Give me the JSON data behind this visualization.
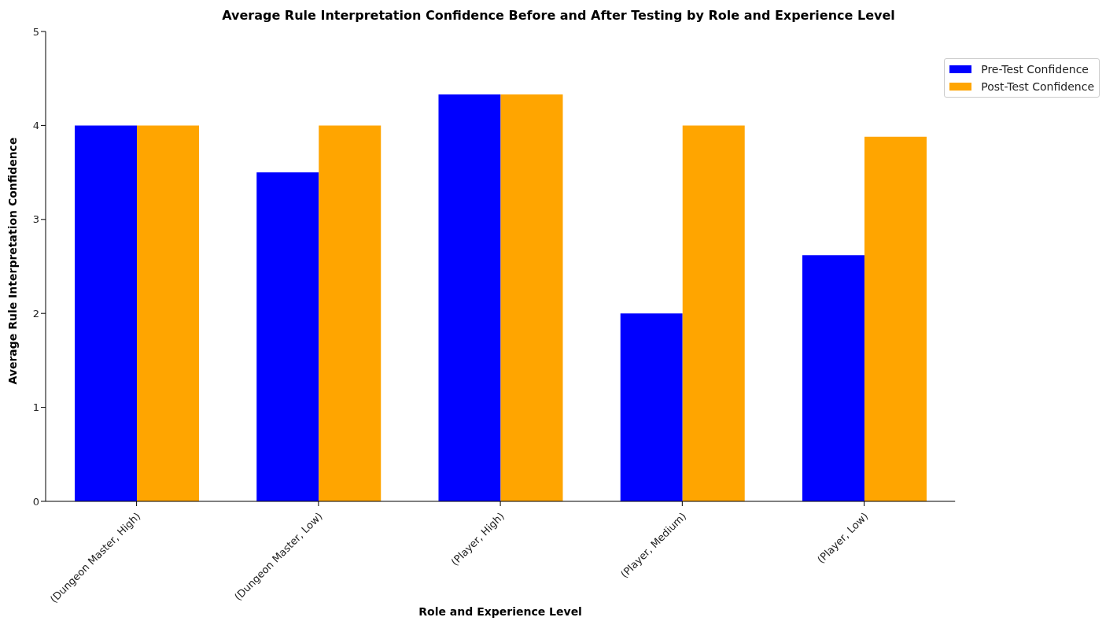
{
  "chart_data": {
    "type": "bar",
    "title": "Average Rule Interpretation Confidence Before and After Testing by Role and Experience Level",
    "xlabel": "Role and Experience Level",
    "ylabel": "Average Rule Interpretation Confidence",
    "categories": [
      "(Dungeon Master, High)",
      "(Dungeon Master, Low)",
      "(Player, High)",
      "(Player, Medium)",
      "(Player, Low)"
    ],
    "series": [
      {
        "name": "Pre-Test Confidence",
        "color": "#0000ff",
        "values": [
          4,
          3.5,
          4.33,
          2,
          2.62
        ]
      },
      {
        "name": "Post-Test Confidence",
        "color": "#ffa500",
        "values": [
          4,
          4,
          4.33,
          4,
          3.88
        ]
      }
    ],
    "ylim": [
      0,
      5
    ],
    "yticks": [
      0,
      1,
      2,
      3,
      4,
      5
    ],
    "grid": false,
    "legend": "top right"
  }
}
